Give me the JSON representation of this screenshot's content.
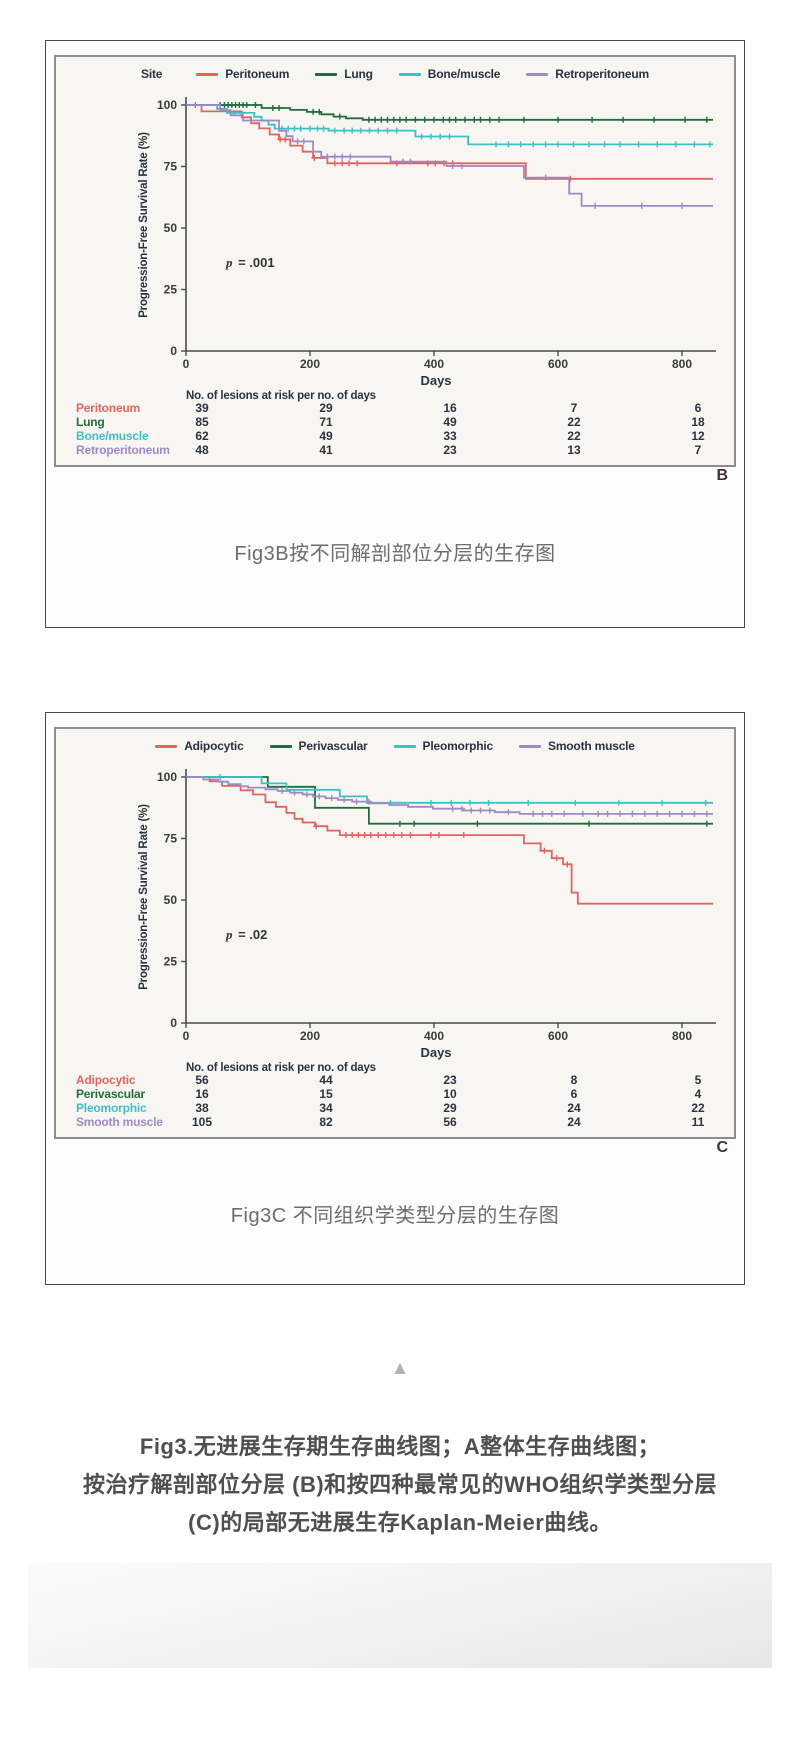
{
  "page": {
    "caption_b": "Fig3B按不同解剖部位分层的生存图",
    "caption_c": "Fig3C 不同组织学类型分层的生存图",
    "collapse_icon": "▲",
    "footer_lines": [
      "Fig3.无进展生存期生存曲线图；A整体生存曲线图；",
      "按治疗解剖部位分层 (B)和按四种最常见的WHO组织学类型分层",
      "(C)的局部无进展生存Kaplan-Meier曲线。"
    ]
  },
  "chart_data": [
    {
      "type": "line",
      "subtype": "kaplan-meier-step",
      "panel_label": "B",
      "legend_title": "Site",
      "legend_position": "top",
      "xlabel": "Days",
      "ylabel": "Progression-Free Survival Rate (%)",
      "xlim": [
        0,
        860
      ],
      "ylim": [
        0,
        100
      ],
      "xticks": [
        0,
        200,
        400,
        600,
        800
      ],
      "yticks": [
        100,
        75,
        50,
        25,
        0
      ],
      "grid": false,
      "p_italic": "p",
      "p_rest": " = .001",
      "risk_table_title": "No. of lesions at risk per no. of days",
      "series": [
        {
          "name": "Peritoneum",
          "color": "#e2645c",
          "steps": [
            [
              0,
              100
            ],
            [
              25,
              97.4
            ],
            [
              90,
              95
            ],
            [
              105,
              92.6
            ],
            [
              118,
              90.5
            ],
            [
              135,
              88
            ],
            [
              150,
              86
            ],
            [
              168,
              83.5
            ],
            [
              188,
              81
            ],
            [
              205,
              78.5
            ],
            [
              228,
              76.3
            ],
            [
              540,
              76.3
            ],
            [
              548,
              70
            ],
            [
              850,
              70
            ]
          ],
          "censors": [
            15,
            152,
            160,
            207,
            240,
            252,
            263,
            276,
            340,
            390,
            402,
            416,
            430,
            620
          ],
          "at_risk": [
            39,
            29,
            16,
            7,
            6
          ]
        },
        {
          "name": "Lung",
          "color": "#226b3e",
          "steps": [
            [
              0,
              100
            ],
            [
              122,
              98.8
            ],
            [
              168,
              98
            ],
            [
              195,
              97.2
            ],
            [
              218,
              96.2
            ],
            [
              238,
              95.3
            ],
            [
              258,
              94.6
            ],
            [
              285,
              94
            ],
            [
              850,
              94
            ]
          ],
          "censors": [
            55,
            62,
            68,
            74,
            80,
            86,
            92,
            98,
            112,
            140,
            150,
            205,
            215,
            248,
            295,
            305,
            315,
            325,
            335,
            345,
            355,
            370,
            385,
            400,
            415,
            425,
            435,
            450,
            465,
            475,
            490,
            505,
            545,
            600,
            655,
            705,
            755,
            805,
            840
          ],
          "at_risk": [
            85,
            71,
            49,
            22,
            18
          ]
        },
        {
          "name": "Bone/muscle",
          "color": "#3ec0c4",
          "steps": [
            [
              0,
              100
            ],
            [
              50,
              98.4
            ],
            [
              66,
              96.8
            ],
            [
              110,
              95.2
            ],
            [
              122,
              93.6
            ],
            [
              133,
              92
            ],
            [
              143,
              90.4
            ],
            [
              230,
              89.6
            ],
            [
              370,
              87.2
            ],
            [
              455,
              84
            ],
            [
              850,
              84
            ]
          ],
          "censors": [
            78,
            155,
            165,
            175,
            185,
            200,
            212,
            222,
            240,
            255,
            268,
            282,
            296,
            310,
            325,
            340,
            380,
            395,
            410,
            425,
            500,
            520,
            540,
            560,
            580,
            600,
            625,
            650,
            675,
            700,
            730,
            760,
            790,
            820,
            845
          ],
          "at_risk": [
            62,
            49,
            33,
            22,
            12
          ]
        },
        {
          "name": "Retroperitoneum",
          "color": "#a08ac4",
          "steps": [
            [
              0,
              100
            ],
            [
              55,
              97.9
            ],
            [
              72,
              95.8
            ],
            [
              92,
              93.7
            ],
            [
              150,
              89.5
            ],
            [
              162,
              87.3
            ],
            [
              172,
              85.2
            ],
            [
              205,
              81
            ],
            [
              218,
              79
            ],
            [
              330,
              77
            ],
            [
              420,
              75.2
            ],
            [
              545,
              70.5
            ],
            [
              618,
              64
            ],
            [
              638,
              59
            ],
            [
              850,
              59
            ]
          ],
          "censors": [
            180,
            190,
            228,
            240,
            252,
            265,
            350,
            362,
            430,
            445,
            580,
            660,
            735,
            800
          ],
          "at_risk": [
            48,
            41,
            23,
            13,
            7
          ]
        }
      ]
    },
    {
      "type": "line",
      "subtype": "kaplan-meier-step",
      "panel_label": "C",
      "legend_title": "",
      "legend_position": "top",
      "xlabel": "Days",
      "ylabel": "Progression-Free Survival Rate (%)",
      "xlim": [
        0,
        860
      ],
      "ylim": [
        0,
        100
      ],
      "xticks": [
        0,
        200,
        400,
        600,
        800
      ],
      "yticks": [
        100,
        75,
        50,
        25,
        0
      ],
      "grid": false,
      "p_italic": "p",
      "p_rest": " = .02",
      "risk_table_title": "No. of lesions at risk per no. of days",
      "series": [
        {
          "name": "Adipocytic",
          "color": "#e2645c",
          "steps": [
            [
              0,
              100
            ],
            [
              38,
              98.2
            ],
            [
              58,
              96.4
            ],
            [
              88,
              94.6
            ],
            [
              108,
              92.9
            ],
            [
              128,
              89.7
            ],
            [
              145,
              87.9
            ],
            [
              162,
              85.4
            ],
            [
              175,
              83
            ],
            [
              188,
              81.5
            ],
            [
              208,
              80
            ],
            [
              228,
              78.2
            ],
            [
              248,
              76.4
            ],
            [
              418,
              76.4
            ],
            [
              545,
              73
            ],
            [
              572,
              70
            ],
            [
              590,
              67
            ],
            [
              608,
              64.5
            ],
            [
              622,
              53
            ],
            [
              632,
              48.5
            ],
            [
              850,
              48.5
            ]
          ],
          "censors": [
            210,
            258,
            268,
            278,
            288,
            298,
            310,
            322,
            335,
            348,
            362,
            395,
            408,
            448,
            578,
            598,
            615
          ],
          "at_risk": [
            56,
            44,
            23,
            8,
            5
          ]
        },
        {
          "name": "Perivascular",
          "color": "#226b3e",
          "steps": [
            [
              0,
              100
            ],
            [
              132,
              96
            ],
            [
              208,
              87.5
            ],
            [
              295,
              81
            ],
            [
              850,
              81
            ]
          ],
          "censors": [
            345,
            368,
            470,
            650,
            840
          ],
          "at_risk": [
            16,
            15,
            10,
            6,
            4
          ]
        },
        {
          "name": "Pleomorphic",
          "color": "#3ec0c4",
          "steps": [
            [
              0,
              100
            ],
            [
              122,
              97.4
            ],
            [
              162,
              94.8
            ],
            [
              248,
              92.1
            ],
            [
              292,
              89.5
            ],
            [
              850,
              89.5
            ]
          ],
          "censors": [
            55,
            330,
            395,
            428,
            458,
            488,
            552,
            628,
            698,
            768,
            838
          ],
          "at_risk": [
            38,
            34,
            29,
            24,
            22
          ]
        },
        {
          "name": "Smooth muscle",
          "color": "#a08ac4",
          "steps": [
            [
              0,
              100
            ],
            [
              28,
              99
            ],
            [
              52,
              98.1
            ],
            [
              68,
              97.1
            ],
            [
              88,
              96.2
            ],
            [
              100,
              95.7
            ],
            [
              128,
              95
            ],
            [
              148,
              94.3
            ],
            [
              168,
              93.6
            ],
            [
              188,
              92.9
            ],
            [
              205,
              92.1
            ],
            [
              225,
              91.4
            ],
            [
              245,
              90.7
            ],
            [
              268,
              90
            ],
            [
              298,
              89.3
            ],
            [
              328,
              88.6
            ],
            [
              358,
              87.9
            ],
            [
              398,
              87.1
            ],
            [
              448,
              86.4
            ],
            [
              498,
              85.7
            ],
            [
              538,
              85
            ],
            [
              850,
              85
            ]
          ],
          "censors": [
            155,
            175,
            195,
            215,
            235,
            255,
            275,
            295,
            430,
            445,
            460,
            475,
            490,
            520,
            560,
            575,
            590,
            610,
            640,
            665,
            680,
            700,
            720,
            740,
            760,
            780,
            800,
            820,
            840
          ],
          "at_risk": [
            105,
            82,
            56,
            24,
            11
          ]
        }
      ]
    }
  ]
}
